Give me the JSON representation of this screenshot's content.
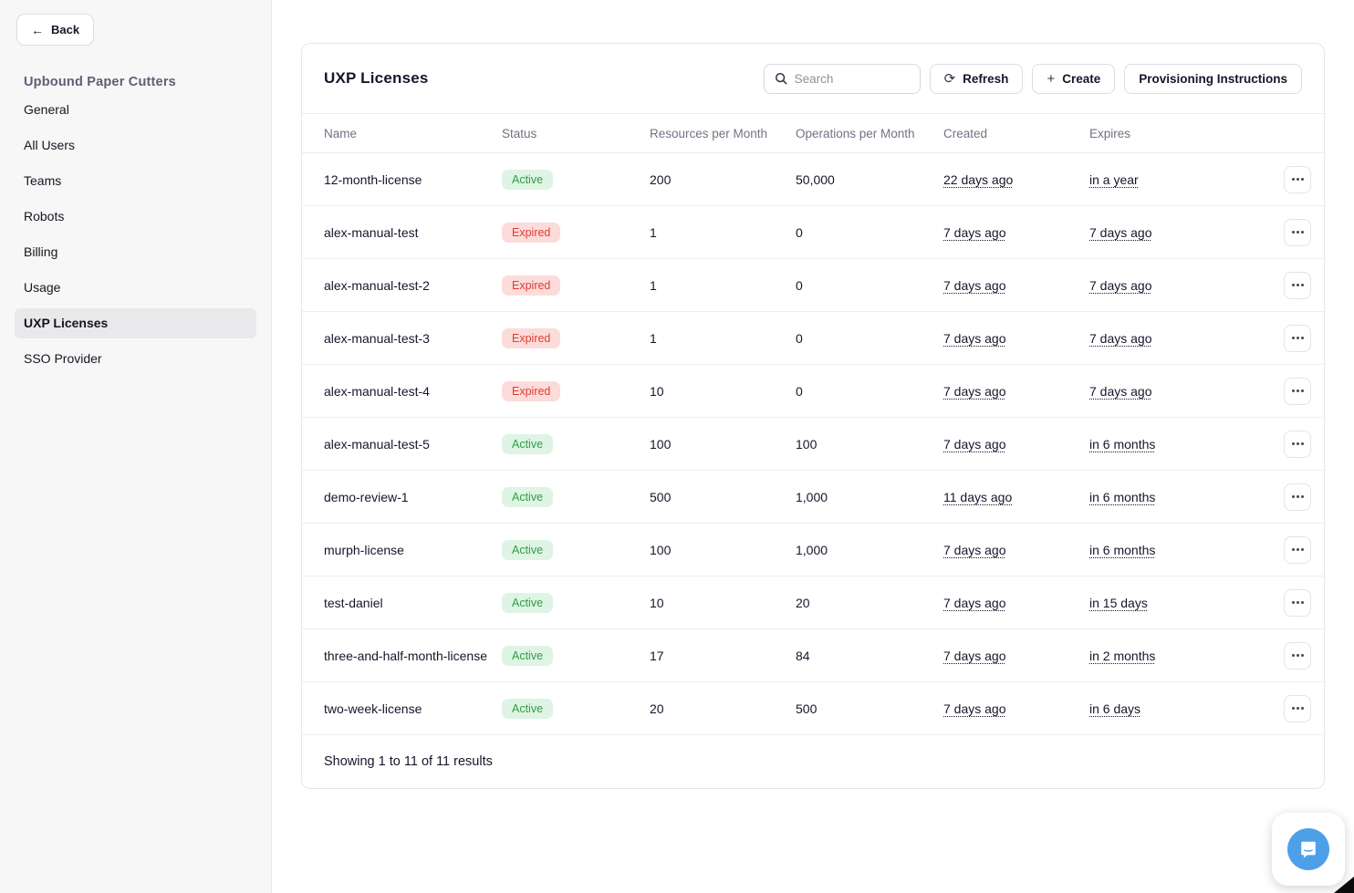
{
  "sidebar": {
    "back_label": "Back",
    "org_title": "Upbound Paper Cutters",
    "items": [
      {
        "label": "General",
        "active": false
      },
      {
        "label": "All Users",
        "active": false
      },
      {
        "label": "Teams",
        "active": false
      },
      {
        "label": "Robots",
        "active": false
      },
      {
        "label": "Billing",
        "active": false
      },
      {
        "label": "Usage",
        "active": false
      },
      {
        "label": "UXP Licenses",
        "active": true
      },
      {
        "label": "SSO Provider",
        "active": false
      }
    ]
  },
  "main": {
    "title": "UXP Licenses",
    "search": {
      "placeholder": "Search",
      "icon": "search-icon"
    },
    "toolbar": {
      "refresh_label": "Refresh",
      "create_label": "Create",
      "provisioning_label": "Provisioning Instructions",
      "refresh_icon": "refresh-icon",
      "create_icon": "plus-icon"
    },
    "table": {
      "columns": [
        "Name",
        "Status",
        "Resources per Month",
        "Operations per Month",
        "Created",
        "Expires"
      ],
      "rows": [
        {
          "name": "12-month-license",
          "status": "Active",
          "resources": "200",
          "operations": "50,000",
          "created": "22 days ago",
          "expires": "in a year"
        },
        {
          "name": "alex-manual-test",
          "status": "Expired",
          "resources": "1",
          "operations": "0",
          "created": "7 days ago",
          "expires": "7 days ago"
        },
        {
          "name": "alex-manual-test-2",
          "status": "Expired",
          "resources": "1",
          "operations": "0",
          "created": "7 days ago",
          "expires": "7 days ago"
        },
        {
          "name": "alex-manual-test-3",
          "status": "Expired",
          "resources": "1",
          "operations": "0",
          "created": "7 days ago",
          "expires": "7 days ago"
        },
        {
          "name": "alex-manual-test-4",
          "status": "Expired",
          "resources": "10",
          "operations": "0",
          "created": "7 days ago",
          "expires": "7 days ago"
        },
        {
          "name": "alex-manual-test-5",
          "status": "Active",
          "resources": "100",
          "operations": "100",
          "created": "7 days ago",
          "expires": "in 6 months"
        },
        {
          "name": "demo-review-1",
          "status": "Active",
          "resources": "500",
          "operations": "1,000",
          "created": "11 days ago",
          "expires": "in 6 months"
        },
        {
          "name": "murph-license",
          "status": "Active",
          "resources": "100",
          "operations": "1,000",
          "created": "7 days ago",
          "expires": "in 6 months"
        },
        {
          "name": "test-daniel",
          "status": "Active",
          "resources": "10",
          "operations": "20",
          "created": "7 days ago",
          "expires": "in 15 days"
        },
        {
          "name": "three-and-half-month-license",
          "status": "Active",
          "resources": "17",
          "operations": "84",
          "created": "7 days ago",
          "expires": "in 2 months"
        },
        {
          "name": "two-week-license",
          "status": "Active",
          "resources": "20",
          "operations": "500",
          "created": "7 days ago",
          "expires": "in 6 days"
        }
      ],
      "footer": "Showing 1 to 11 of 11 results"
    }
  },
  "colors": {
    "active_badge_bg": "#def4e4",
    "active_badge_text": "#2f9e44",
    "expired_badge_bg": "#fcdcda",
    "expired_badge_text": "#e03c32",
    "chat_blue": "#4da0e8",
    "sidebar_bg": "#f7f7f8"
  },
  "chat": {
    "icon": "chat-bubble-icon"
  }
}
